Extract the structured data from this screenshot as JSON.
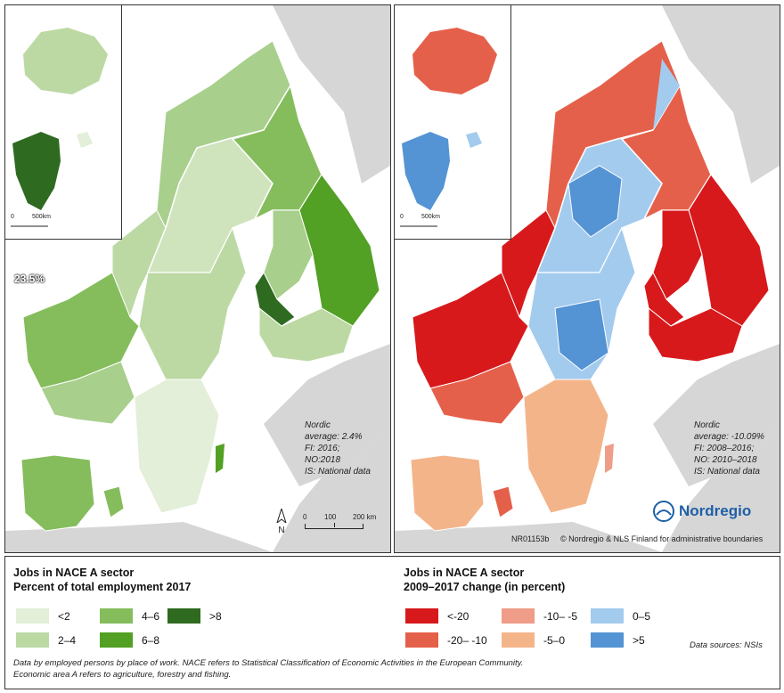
{
  "left_map": {
    "greenland_value": "23.5%",
    "note": [
      "Nordic",
      "average: 2.4%",
      "FI: 2016;",
      "NO:2018",
      "IS: National data"
    ],
    "scale_inset": [
      "0",
      "500km"
    ],
    "north_label": "N",
    "scale_ticks": [
      "0",
      "100",
      "200 km"
    ]
  },
  "right_map": {
    "note": [
      "Nordic",
      "average: -10.09%",
      "FI: 2008–2016;",
      "NO: 2010–2018",
      "IS: National data"
    ],
    "scale_inset": [
      "0",
      "500km"
    ],
    "logo_text": "Nordregio",
    "code": "NR01153b",
    "credit": "© Nordregio & NLS Finland for administrative boundaries"
  },
  "legend_left": {
    "title_line1": "Jobs in NACE A sector",
    "title_line2": "Percent of total employment 2017",
    "classes": [
      {
        "label": "<2",
        "color": "#e3efd9"
      },
      {
        "label": "2–4",
        "color": "#bcd9a4"
      },
      {
        "label": "4–6",
        "color": "#85bd5c"
      },
      {
        "label": "6–8",
        "color": "#52a024"
      },
      {
        "label": ">8",
        "color": "#2e6a1f"
      }
    ]
  },
  "legend_right": {
    "title_line1": "Jobs in NACE A sector",
    "title_line2": "2009–2017 change (in percent)",
    "classes": [
      {
        "label": "<-20",
        "color": "#d7191c"
      },
      {
        "label": "-20– -10",
        "color": "#e5604a"
      },
      {
        "label": "-10– -5",
        "color": "#ef9c88"
      },
      {
        "label": "-5–0",
        "color": "#f4b48a"
      },
      {
        "label": "0–5",
        "color": "#a3cbee"
      },
      {
        "label": ">5",
        "color": "#5493d4"
      }
    ]
  },
  "footnote_line1": "Data by employed persons by place of work. NACE refers to Statistical Classification of Economic Activities in the European Community.",
  "footnote_line2": "Economic area A refers to agriculture, forestry and fishing.",
  "sources": "Data sources: NSIs",
  "colors": {
    "background_land": "#d6d6d6",
    "sea": "#ffffff",
    "border": "#ffffff"
  }
}
